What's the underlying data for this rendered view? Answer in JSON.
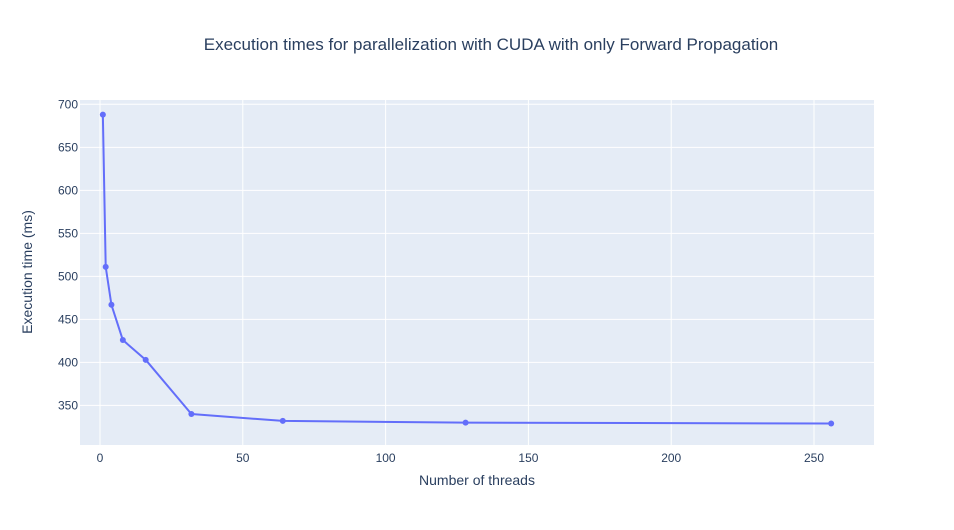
{
  "chart_data": {
    "type": "line",
    "title": "Execution times for parallelization with CUDA with only Forward Propagation",
    "xlabel": "Number of threads",
    "ylabel": "Execution time (ms)",
    "xlim": [
      -7,
      271
    ],
    "ylim": [
      304,
      705
    ],
    "xticks": [
      0,
      50,
      100,
      150,
      200,
      250
    ],
    "yticks": [
      350,
      400,
      450,
      500,
      550,
      600,
      650,
      700
    ],
    "grid": true,
    "legend": "none",
    "series": [
      {
        "x": [
          1,
          2,
          4,
          8,
          16,
          32,
          64,
          128,
          256
        ],
        "y": [
          688,
          511,
          467,
          426,
          403,
          340,
          332,
          330,
          329
        ],
        "color": "#636efa"
      }
    ],
    "plot_bg": "#e5ecf6",
    "grid_color": "#ffffff"
  }
}
